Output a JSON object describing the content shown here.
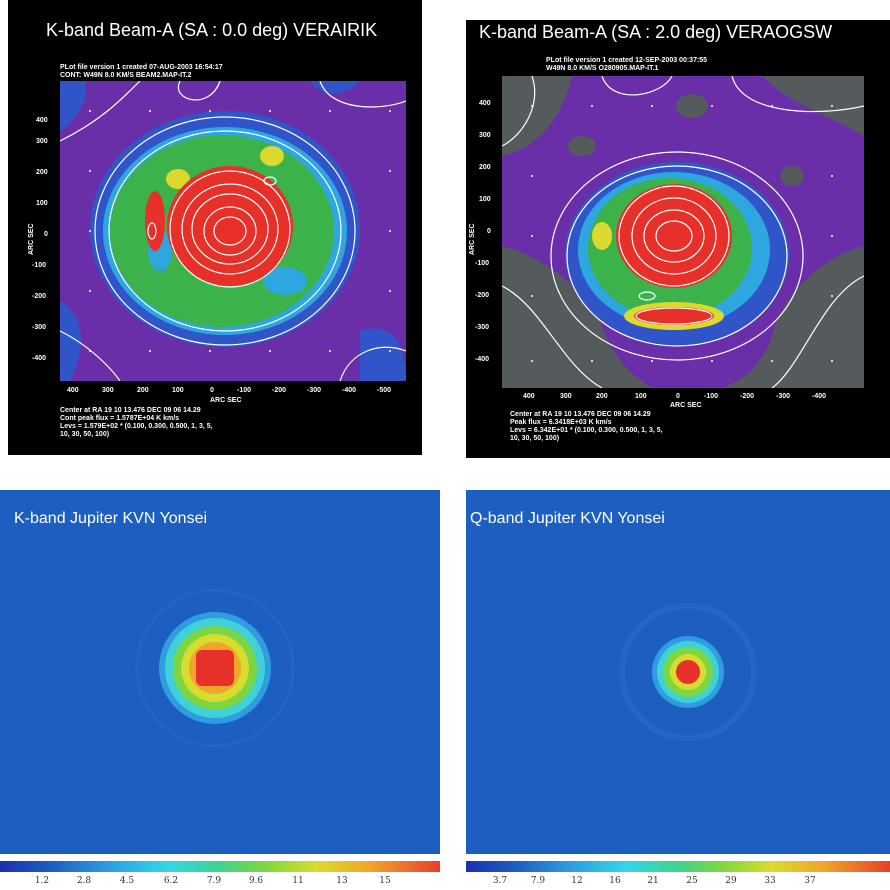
{
  "panels": {
    "tl": {
      "title": "K-band Beam-A (SA : 0.0 deg) VERAIRIK",
      "header": [
        "PLot file version 1  created 07-AUG-2003 16:54:17",
        "CONT: W49N  8.0 KM/S  BEAM2.MAP-IT.2"
      ],
      "footer": [
        "Center at RA 19 10 13.476  DEC 09 06 14.29",
        "Cont peak flux =  1.5787E+04 K km/s",
        "Levs = 1.579E+02 * (0.100, 0.300, 0.500, 1, 3, 5,",
        "10, 30, 50, 100)"
      ],
      "xlabel": "ARC SEC",
      "ylabel": "ARC SEC",
      "xticks": [
        "400",
        "300",
        "200",
        "100",
        "0",
        "-100",
        "-200",
        "-300",
        "-400",
        "-500"
      ],
      "yticks": [
        "400",
        "300",
        "200",
        "100",
        "0",
        "-100",
        "-200",
        "-300",
        "-400"
      ]
    },
    "tr": {
      "title": "K-band Beam-A (SA : 2.0 deg) VERAOGSW",
      "header": [
        "PLot file version 1  created 12-SEP-2003 00:37:55",
        "W49N  8.0 KM/S  O280905.MAP-IT.1"
      ],
      "footer": [
        "Center at RA 19 10 13.476  DEC 09 06 14.29",
        "Peak flux =  6.3418E+03 K km/s",
        "Levs = 6.342E+01 * (0.100, 0.300, 0.500, 1, 3, 5,",
        "10, 30, 50, 100)"
      ],
      "xlabel": "ARC SEC",
      "ylabel": "ARC SEC",
      "xticks": [
        "400",
        "300",
        "200",
        "100",
        "0",
        "-100",
        "-200",
        "-300",
        "-400"
      ],
      "yticks": [
        "400",
        "300",
        "200",
        "100",
        "0",
        "-100",
        "-200",
        "-300",
        "-400"
      ]
    },
    "bl": {
      "title": "K-band Jupiter KVN Yonsei",
      "colorbar_ticks": [
        "1.2",
        "2.8",
        "4.5",
        "6.2",
        "7.9",
        "9.6",
        "11",
        "13",
        "15"
      ]
    },
    "br": {
      "title": "Q-band Jupiter KVN Yonsei",
      "colorbar_ticks": [
        "3.7",
        "7.9",
        "12",
        "16",
        "21",
        "25",
        "29",
        "33",
        "37"
      ]
    }
  },
  "colors": {
    "background_purple": "#6a2fa8",
    "blue": "#2f55c8",
    "cyan": "#2ea6e0",
    "green": "#3bb34a",
    "yellow": "#dcd82e",
    "red": "#e8302a",
    "jupiter_bg": "#1d5fc0"
  },
  "chart_data": [
    {
      "type": "heatmap",
      "title": "K-band Beam-A (SA : 0.0 deg) VERAIRIK",
      "xlabel": "ARC SEC",
      "ylabel": "ARC SEC",
      "xlim": [
        450,
        -520
      ],
      "ylim": [
        -470,
        480
      ],
      "contour_levels": [
        0.1,
        0.3,
        0.5,
        1,
        3,
        5,
        10,
        30,
        50,
        100
      ],
      "peak_flux": "1.5787E+04 K km/s"
    },
    {
      "type": "heatmap",
      "title": "K-band Beam-A (SA : 2.0 deg) VERAOGSW",
      "xlabel": "ARC SEC",
      "ylabel": "ARC SEC",
      "xlim": [
        480,
        -500
      ],
      "ylim": [
        -470,
        480
      ],
      "contour_levels": [
        0.1,
        0.3,
        0.5,
        1,
        3,
        5,
        10,
        30,
        50,
        100
      ],
      "peak_flux": "6.3418E+03 K km/s"
    },
    {
      "type": "heatmap",
      "title": "K-band Jupiter KVN Yonsei",
      "colorbar": [
        1.2,
        2.8,
        4.5,
        6.2,
        7.9,
        9.6,
        11,
        13,
        15
      ]
    },
    {
      "type": "heatmap",
      "title": "Q-band Jupiter KVN Yonsei",
      "colorbar": [
        3.7,
        7.9,
        12,
        16,
        21,
        25,
        29,
        33,
        37
      ]
    }
  ]
}
